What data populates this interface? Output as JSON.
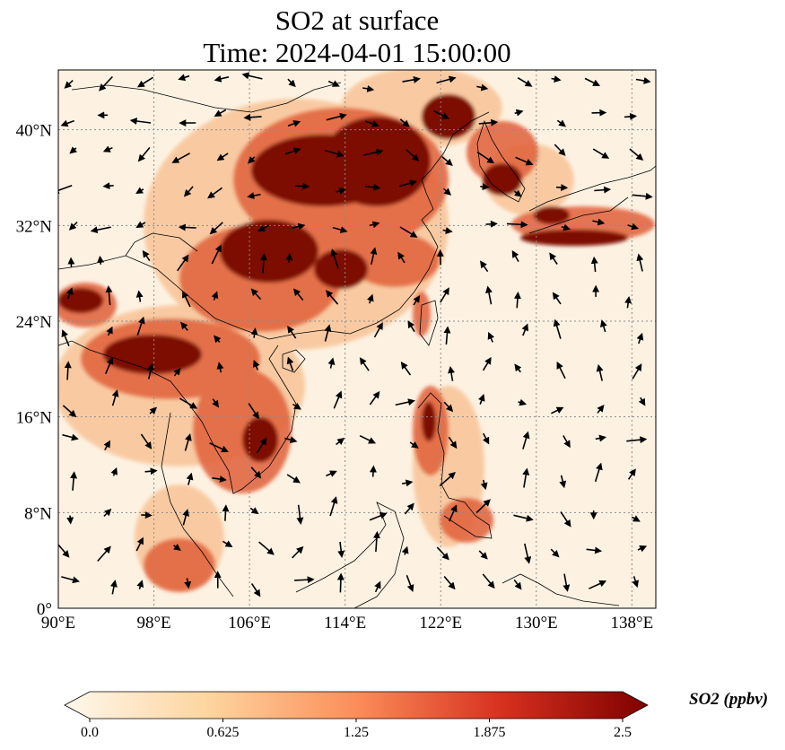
{
  "title": {
    "line1": "SO2 at surface",
    "line2": "Time: 2024-04-01 15:00:00"
  },
  "map": {
    "lon_range": [
      90,
      140
    ],
    "lat_range": [
      0,
      45
    ],
    "lon_ticks": [
      {
        "value": 90,
        "label": "90°E"
      },
      {
        "value": 98,
        "label": "98°E"
      },
      {
        "value": 106,
        "label": "106°E"
      },
      {
        "value": 114,
        "label": "114°E"
      },
      {
        "value": 122,
        "label": "122°E"
      },
      {
        "value": 130,
        "label": "130°E"
      },
      {
        "value": 138,
        "label": "138°E"
      }
    ],
    "lat_ticks": [
      {
        "value": 0,
        "label": "0°"
      },
      {
        "value": 8,
        "label": "8°N"
      },
      {
        "value": 16,
        "label": "16°N"
      },
      {
        "value": 24,
        "label": "24°N"
      },
      {
        "value": 32,
        "label": "32°N"
      },
      {
        "value": 40,
        "label": "40°N"
      }
    ],
    "background_color": "#fdf2e2",
    "high_color": "#7a0000",
    "gridline_color": "#8a8a8a"
  },
  "colorbar": {
    "label": "SO2 (ppbv)",
    "min": 0.0,
    "max": 2.5,
    "ticks": [
      "0.0",
      "0.625",
      "1.25",
      "1.875",
      "2.5"
    ],
    "colors": [
      "#fff7ec",
      "#fdd49e",
      "#fc8d59",
      "#d7301f",
      "#7f0000"
    ]
  }
}
